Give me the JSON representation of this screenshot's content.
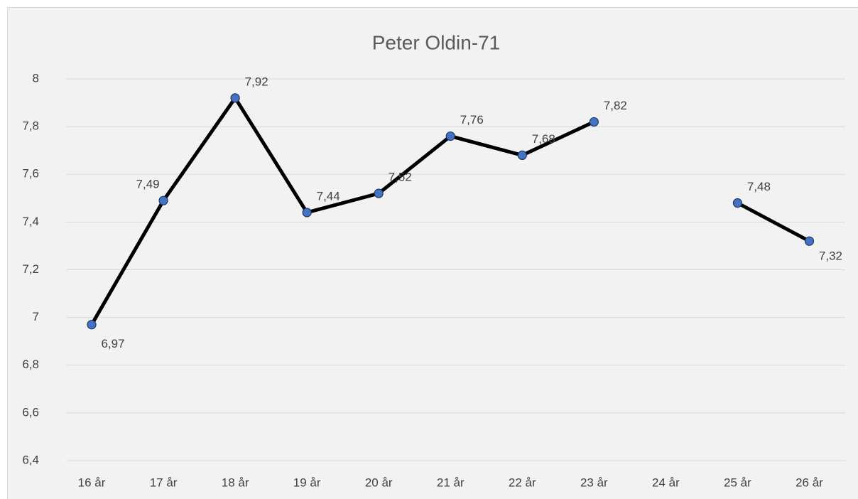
{
  "chart_data": {
    "type": "line",
    "title": "Peter Oldin-71",
    "categories": [
      "16 år",
      "17 år",
      "18 år",
      "19 år",
      "20 år",
      "21 år",
      "22 år",
      "23 år",
      "24 år",
      "25 år",
      "26 år"
    ],
    "values": [
      6.97,
      7.49,
      7.92,
      7.44,
      7.52,
      7.76,
      7.68,
      7.82,
      null,
      7.48,
      7.32
    ],
    "value_labels": [
      "6,97",
      "7,49",
      "7,92",
      "7,44",
      "7,52",
      "7,76",
      "7,68",
      "7,82",
      null,
      "7,48",
      "7,32"
    ],
    "color": "#000000",
    "marker_color": "#4472c4",
    "ylim": [
      6.4,
      8
    ],
    "yticks": [
      {
        "value": 6.4,
        "label": "6,4"
      },
      {
        "value": 6.6,
        "label": "6,6"
      },
      {
        "value": 6.8,
        "label": "6,8"
      },
      7,
      {
        "value": 7.2,
        "label": "7,2"
      },
      {
        "value": 7.4,
        "label": "7,4"
      },
      {
        "value": 7.6,
        "label": "7,6"
      },
      {
        "value": 7.8,
        "label": "7,8"
      },
      8
    ],
    "grid": true
  }
}
